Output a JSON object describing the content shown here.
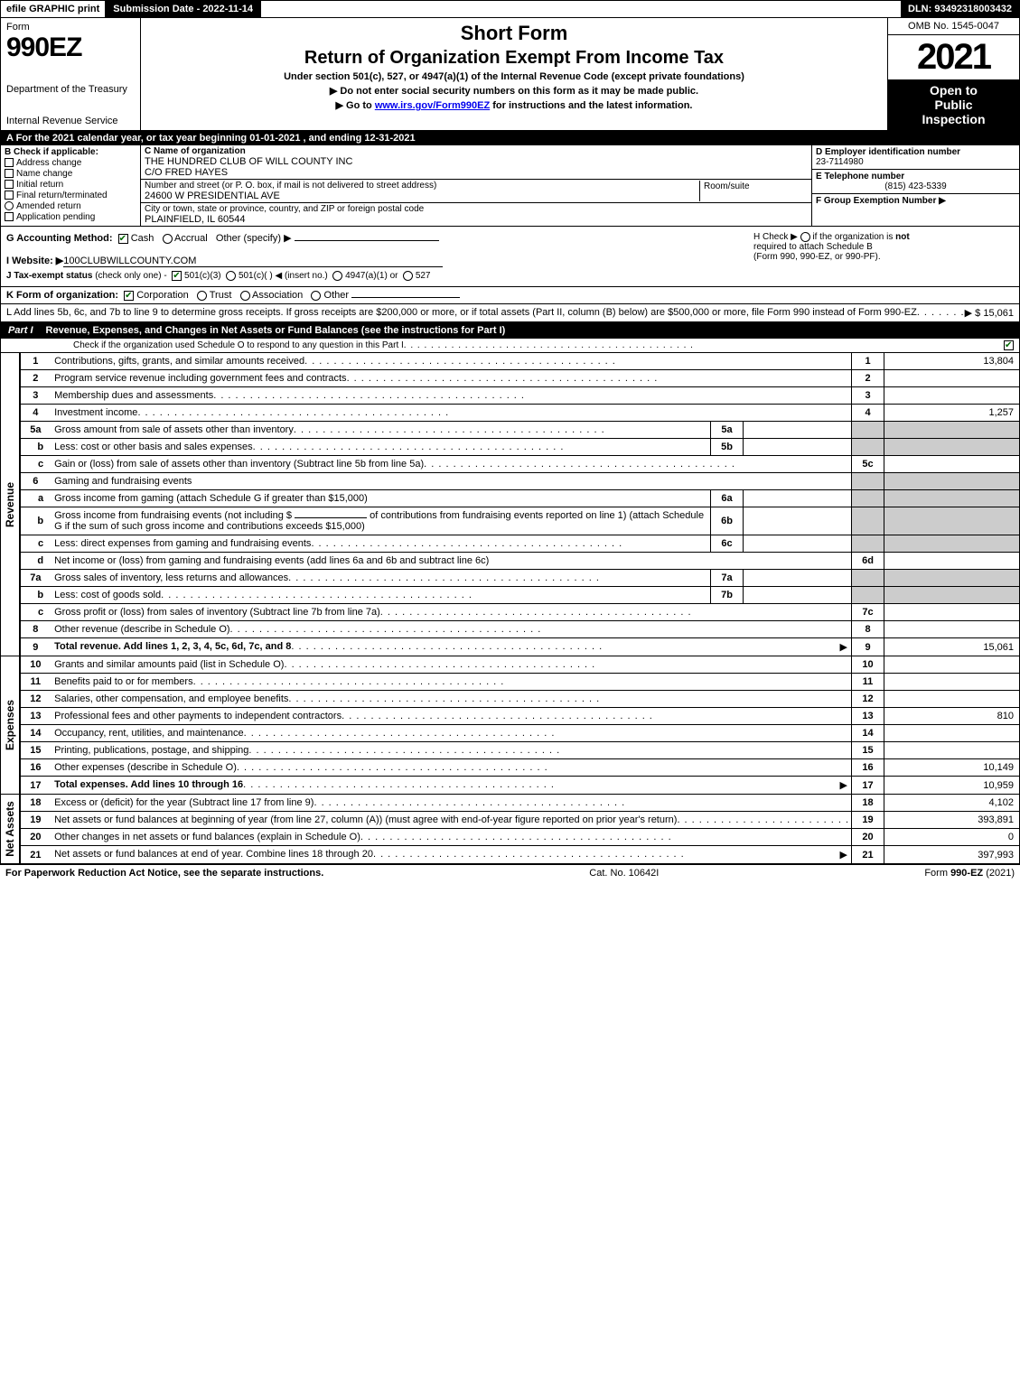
{
  "topbar": {
    "efile": "efile GRAPHIC print",
    "submission": "Submission Date - 2022-11-14",
    "dln": "DLN: 93492318003432"
  },
  "header": {
    "form_label": "Form",
    "form_number": "990EZ",
    "dept1": "Department of the Treasury",
    "dept2": "Internal Revenue Service",
    "title1": "Short Form",
    "title2": "Return of Organization Exempt From Income Tax",
    "subtitle": "Under section 501(c), 527, or 4947(a)(1) of the Internal Revenue Code (except private foundations)",
    "note1": "▶ Do not enter social security numbers on this form as it may be made public.",
    "note2_pre": "▶ Go to ",
    "note2_link": "www.irs.gov/Form990EZ",
    "note2_post": " for instructions and the latest information.",
    "omb": "OMB No. 1545-0047",
    "year": "2021",
    "open1": "Open to",
    "open2": "Public",
    "open3": "Inspection"
  },
  "lineA": "A  For the 2021 calendar year, or tax year beginning 01-01-2021  , and ending 12-31-2021",
  "colB": {
    "hdr": "B  Check if applicable:",
    "opts": [
      "Address change",
      "Name change",
      "Initial return",
      "Final return/terminated",
      "Amended return",
      "Application pending"
    ]
  },
  "colC": {
    "name_lbl": "C Name of organization",
    "name": "THE HUNDRED CLUB OF WILL COUNTY INC",
    "co": "C/O FRED HAYES",
    "street_lbl": "Number and street (or P. O. box, if mail is not delivered to street address)",
    "room_lbl": "Room/suite",
    "street": "24600 W PRESIDENTIAL AVE",
    "city_lbl": "City or town, state or province, country, and ZIP or foreign postal code",
    "city": "PLAINFIELD, IL  60544"
  },
  "colD": {
    "ein_lbl": "D Employer identification number",
    "ein": "23-7114980",
    "tel_lbl": "E Telephone number",
    "tel": "(815) 423-5339",
    "grp_lbl": "F Group Exemption Number   ▶"
  },
  "rowG": {
    "label": "G Accounting Method:",
    "cash": "Cash",
    "accrual": "Accrual",
    "other": "Other (specify) ▶"
  },
  "rowH": {
    "text1": "H  Check ▶",
    "text2": "if the organization is ",
    "not": "not",
    "text3": "required to attach Schedule B",
    "text4": "(Form 990, 990-EZ, or 990-PF)."
  },
  "rowI": {
    "label": "I Website: ▶",
    "val": "100CLUBWILLCOUNTY.COM"
  },
  "rowJ": {
    "label": "J Tax-exempt status",
    "sub": "(check only one) -",
    "o1": "501(c)(3)",
    "o2": "501(c)(  ) ◀ (insert no.)",
    "o3": "4947(a)(1) or",
    "o4": "527"
  },
  "rowK": {
    "label": "K Form of organization:",
    "o1": "Corporation",
    "o2": "Trust",
    "o3": "Association",
    "o4": "Other"
  },
  "rowL": {
    "text": "L Add lines 5b, 6c, and 7b to line 9 to determine gross receipts. If gross receipts are $200,000 or more, or if total assets (Part II, column (B) below) are $500,000 or more, file Form 990 instead of Form 990-EZ",
    "amount": "▶ $ 15,061"
  },
  "part1": {
    "tag": "Part I",
    "title": "Revenue, Expenses, and Changes in Net Assets or Fund Balances (see the instructions for Part I)",
    "sub": "Check if the organization used Schedule O to respond to any question in this Part I"
  },
  "sections": {
    "revenue": "Revenue",
    "expenses": "Expenses",
    "netassets": "Net Assets"
  },
  "lines": {
    "l1": {
      "n": "1",
      "d": "Contributions, gifts, grants, and similar amounts received",
      "ln": "1",
      "a": "13,804"
    },
    "l2": {
      "n": "2",
      "d": "Program service revenue including government fees and contracts",
      "ln": "2",
      "a": ""
    },
    "l3": {
      "n": "3",
      "d": "Membership dues and assessments",
      "ln": "3",
      "a": ""
    },
    "l4": {
      "n": "4",
      "d": "Investment income",
      "ln": "4",
      "a": "1,257"
    },
    "l5a": {
      "n": "5a",
      "d": "Gross amount from sale of assets other than inventory",
      "in": "5a"
    },
    "l5b": {
      "n": "b",
      "d": "Less: cost or other basis and sales expenses",
      "in": "5b"
    },
    "l5c": {
      "n": "c",
      "d": "Gain or (loss) from sale of assets other than inventory (Subtract line 5b from line 5a)",
      "ln": "5c",
      "a": ""
    },
    "l6": {
      "n": "6",
      "d": "Gaming and fundraising events"
    },
    "l6a": {
      "n": "a",
      "d": "Gross income from gaming (attach Schedule G if greater than $15,000)",
      "in": "6a"
    },
    "l6b": {
      "n": "b",
      "d1": "Gross income from fundraising events (not including $",
      "d2": "of contributions from fundraising events reported on line 1) (attach Schedule G if the sum of such gross income and contributions exceeds $15,000)",
      "in": "6b"
    },
    "l6c": {
      "n": "c",
      "d": "Less: direct expenses from gaming and fundraising events",
      "in": "6c"
    },
    "l6d": {
      "n": "d",
      "d": "Net income or (loss) from gaming and fundraising events (add lines 6a and 6b and subtract line 6c)",
      "ln": "6d",
      "a": ""
    },
    "l7a": {
      "n": "7a",
      "d": "Gross sales of inventory, less returns and allowances",
      "in": "7a"
    },
    "l7b": {
      "n": "b",
      "d": "Less: cost of goods sold",
      "in": "7b"
    },
    "l7c": {
      "n": "c",
      "d": "Gross profit or (loss) from sales of inventory (Subtract line 7b from line 7a)",
      "ln": "7c",
      "a": ""
    },
    "l8": {
      "n": "8",
      "d": "Other revenue (describe in Schedule O)",
      "ln": "8",
      "a": ""
    },
    "l9": {
      "n": "9",
      "d": "Total revenue. Add lines 1, 2, 3, 4, 5c, 6d, 7c, and 8",
      "ln": "9",
      "a": "15,061",
      "bold": true,
      "arrow": true
    },
    "l10": {
      "n": "10",
      "d": "Grants and similar amounts paid (list in Schedule O)",
      "ln": "10",
      "a": ""
    },
    "l11": {
      "n": "11",
      "d": "Benefits paid to or for members",
      "ln": "11",
      "a": ""
    },
    "l12": {
      "n": "12",
      "d": "Salaries, other compensation, and employee benefits",
      "ln": "12",
      "a": ""
    },
    "l13": {
      "n": "13",
      "d": "Professional fees and other payments to independent contractors",
      "ln": "13",
      "a": "810"
    },
    "l14": {
      "n": "14",
      "d": "Occupancy, rent, utilities, and maintenance",
      "ln": "14",
      "a": ""
    },
    "l15": {
      "n": "15",
      "d": "Printing, publications, postage, and shipping",
      "ln": "15",
      "a": ""
    },
    "l16": {
      "n": "16",
      "d": "Other expenses (describe in Schedule O)",
      "ln": "16",
      "a": "10,149"
    },
    "l17": {
      "n": "17",
      "d": "Total expenses. Add lines 10 through 16",
      "ln": "17",
      "a": "10,959",
      "bold": true,
      "arrow": true
    },
    "l18": {
      "n": "18",
      "d": "Excess or (deficit) for the year (Subtract line 17 from line 9)",
      "ln": "18",
      "a": "4,102"
    },
    "l19": {
      "n": "19",
      "d": "Net assets or fund balances at beginning of year (from line 27, column (A)) (must agree with end-of-year figure reported on prior year's return)",
      "ln": "19",
      "a": "393,891"
    },
    "l20": {
      "n": "20",
      "d": "Other changes in net assets or fund balances (explain in Schedule O)",
      "ln": "20",
      "a": "0"
    },
    "l21": {
      "n": "21",
      "d": "Net assets or fund balances at end of year. Combine lines 18 through 20",
      "ln": "21",
      "a": "397,993",
      "arrow": true
    }
  },
  "footer": {
    "l": "For Paperwork Reduction Act Notice, see the separate instructions.",
    "c": "Cat. No. 10642I",
    "r": "Form 990-EZ (2021)"
  },
  "colors": {
    "black": "#000000",
    "white": "#ffffff",
    "grey": "#cccccc",
    "link": "#0000ee",
    "check": "#006600"
  }
}
